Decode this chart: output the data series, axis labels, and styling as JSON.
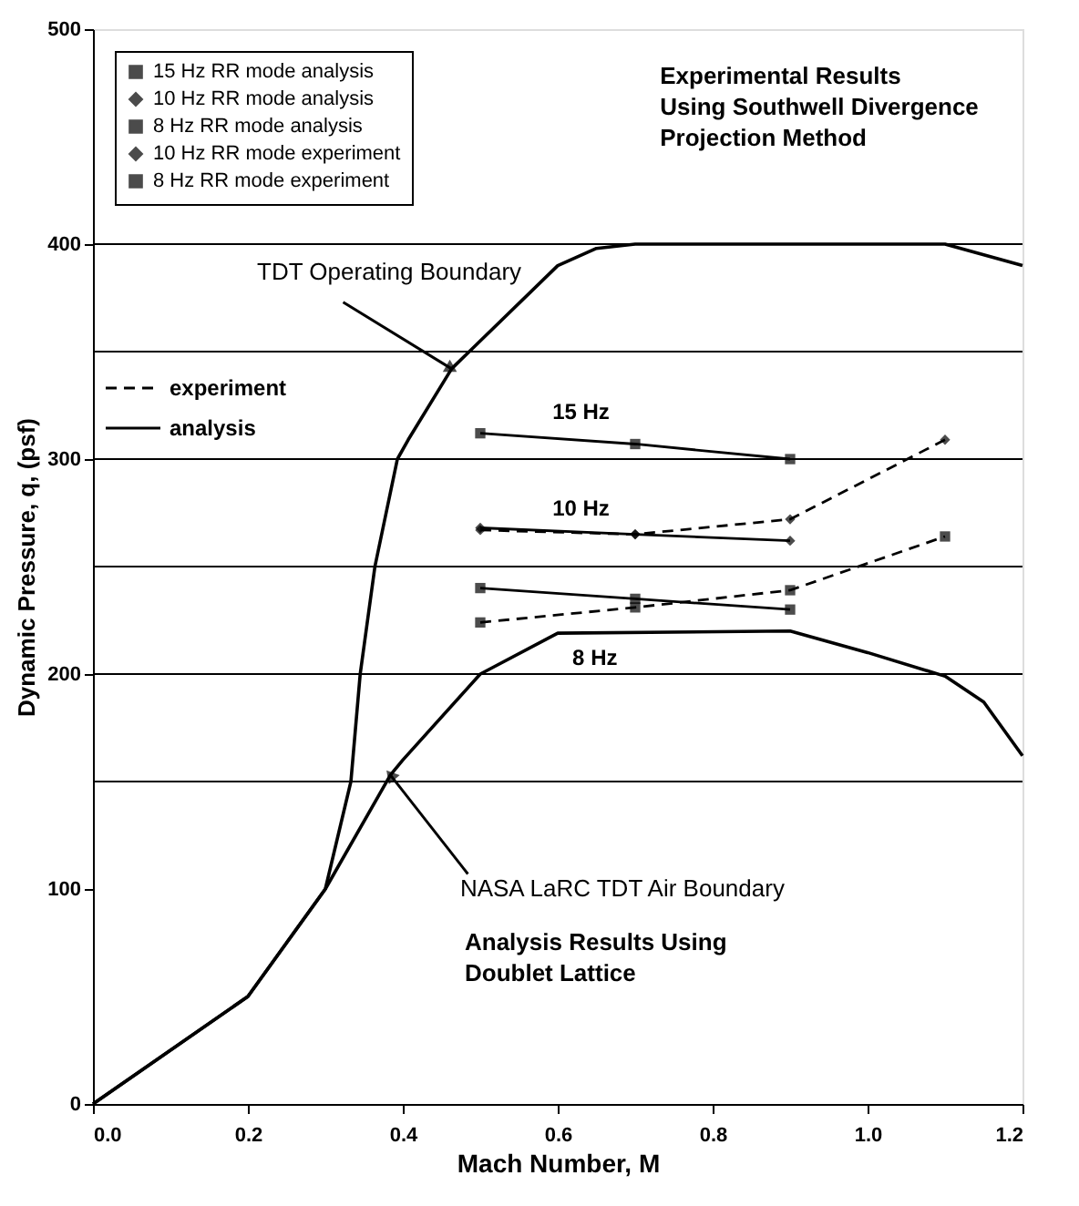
{
  "chart_data": {
    "type": "line",
    "xlabel": "Mach Number, M",
    "ylabel": "Dynamic Pressure, q, (psf)",
    "xlim": [
      0,
      1.2
    ],
    "xticks": [
      {
        "value": 0,
        "label": "0.0"
      },
      0.2,
      0.4,
      0.6,
      0.8,
      {
        "value": 1,
        "label": "1.0"
      },
      1.2
    ],
    "ylim": [
      0,
      500
    ],
    "yticks": [
      0,
      100,
      200,
      300,
      400,
      500
    ],
    "legend": "top left",
    "grid": false,
    "ref_lines": [
      {
        "axis": "y",
        "value": 150
      },
      {
        "axis": "y",
        "value": 200
      },
      {
        "axis": "y",
        "value": 250
      },
      {
        "axis": "y",
        "value": 300
      },
      {
        "axis": "y",
        "value": 350
      },
      {
        "axis": "y",
        "value": 400
      }
    ],
    "annotations": [
      "Experimental Results\nUsing Southwell Divergence\nProjection Method",
      "Analysis Results Using\nDoublet Lattice",
      "experiment",
      "analysis",
      "15 Hz",
      "10 Hz",
      "8 Hz",
      {
        "text": "TDT Operating Boundary",
        "x": 0.463,
        "y": 342
      },
      {
        "text": "NASA LaRC TDT Air Boundary",
        "x": 0.384,
        "y": 153
      }
    ],
    "series": [
      {
        "color": "#000000",
        "line_style": "solid",
        "marker": "none",
        "x": [
          0,
          0.2,
          0.25,
          0.3,
          0.333,
          0.345,
          0.364,
          0.393,
          0.407,
          0.463,
          0.5,
          0.6,
          0.65,
          0.7,
          1.0,
          1.1,
          1.2
        ],
        "values": [
          0,
          50,
          75,
          100,
          150,
          200,
          250,
          300,
          309,
          342,
          355,
          390,
          398,
          400,
          400,
          400,
          390
        ]
      },
      {
        "color": "#000000",
        "line_style": "solid",
        "marker": "none",
        "x": [
          0,
          0.2,
          0.25,
          0.3,
          0.384,
          0.4,
          0.5,
          0.6,
          0.9,
          1.0,
          1.1,
          1.15,
          1.2
        ],
        "values": [
          0,
          50,
          75,
          100,
          153,
          160,
          200,
          219,
          220,
          210,
          199,
          187,
          162
        ]
      },
      {
        "name": "15 Hz RR mode analysis",
        "color": "#000000",
        "line_style": "solid",
        "marker": "square",
        "x": [
          0.5,
          0.7,
          0.9
        ],
        "values": [
          312,
          307,
          300
        ]
      },
      {
        "name": "10 Hz RR mode analysis",
        "color": "#000000",
        "line_style": "solid",
        "marker": "diamond",
        "x": [
          0.5,
          0.7,
          0.9
        ],
        "values": [
          268,
          265,
          262
        ]
      },
      {
        "name": "8 Hz RR mode analysis",
        "color": "#000000",
        "line_style": "solid",
        "marker": "square",
        "x": [
          0.5,
          0.7,
          0.9
        ],
        "values": [
          240,
          235,
          230
        ]
      },
      {
        "name": "10 Hz RR mode experiment",
        "color": "#000000",
        "line_style": "dashed",
        "marker": "diamond",
        "x": [
          0.5,
          0.7,
          0.9,
          1.1
        ],
        "values": [
          267,
          265,
          272,
          309
        ]
      },
      {
        "name": "8 Hz RR mode experiment",
        "color": "#000000",
        "line_style": "dashed",
        "marker": "square",
        "x": [
          0.5,
          0.7,
          0.9,
          1.1
        ],
        "values": [
          224,
          231,
          239,
          264
        ]
      }
    ]
  }
}
